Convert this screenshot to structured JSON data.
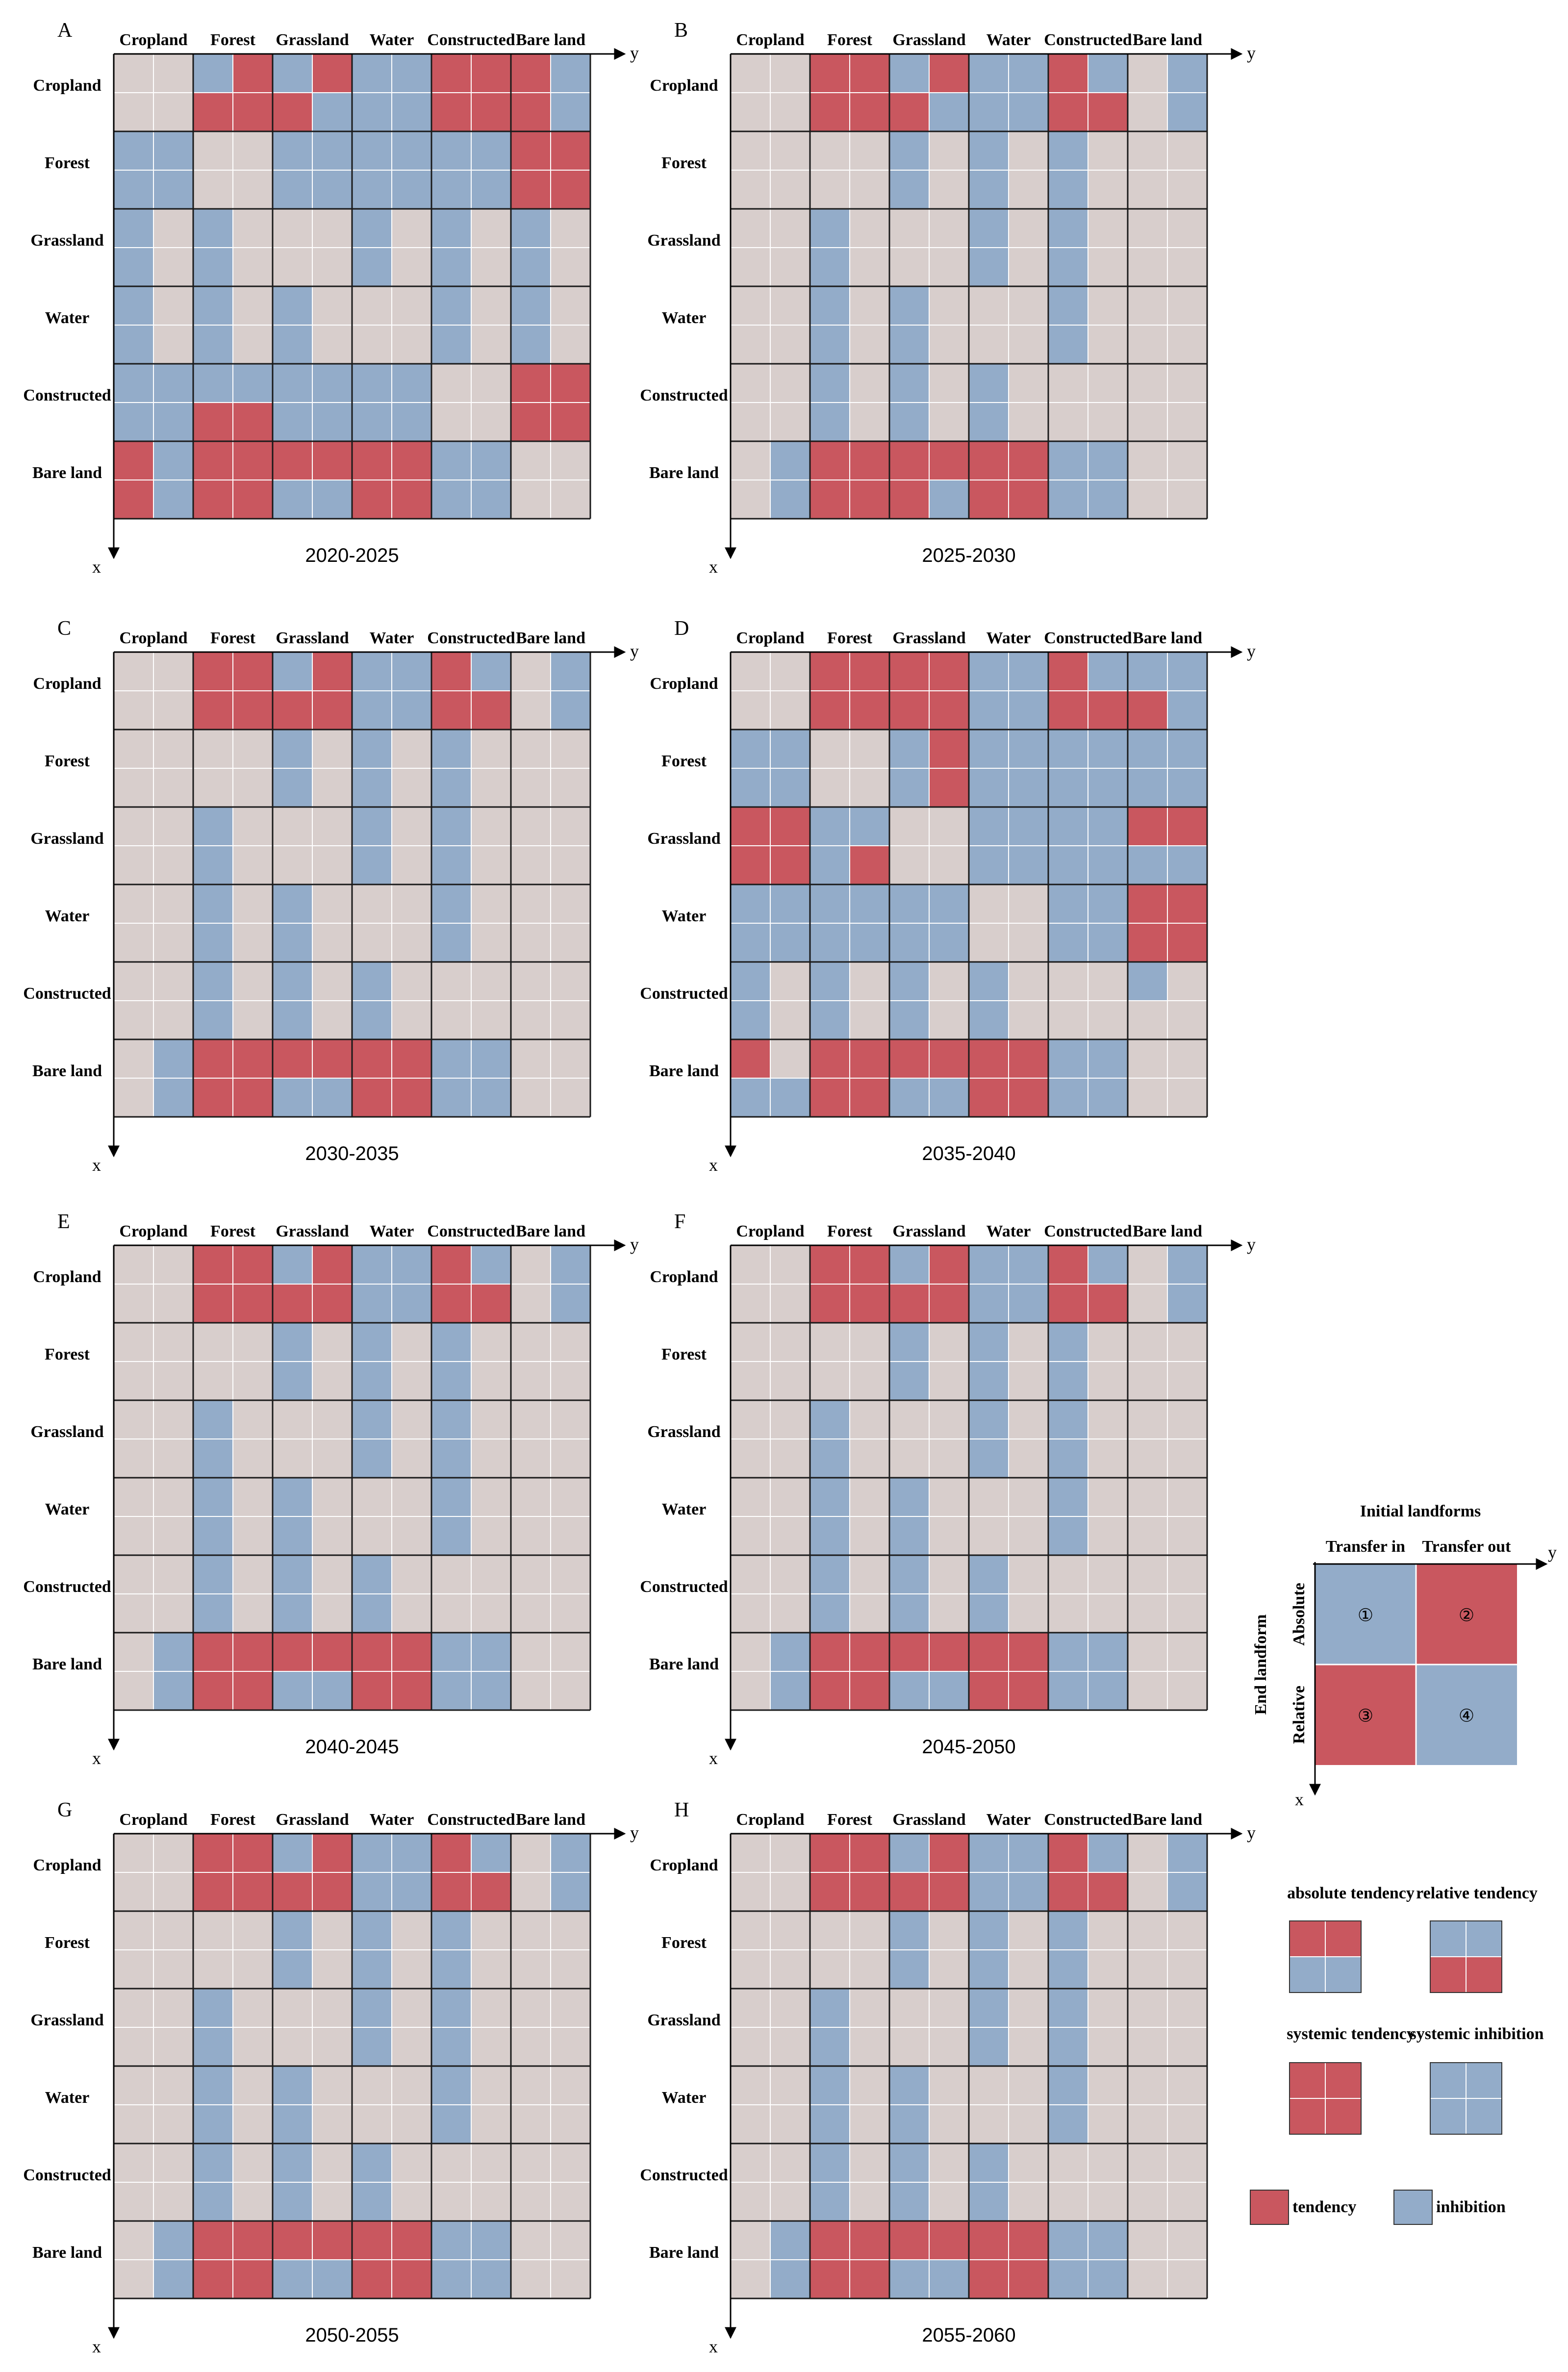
{
  "colors": {
    "tendency": "#c9575f",
    "inhibition": "#93acc9",
    "none": "#d8cecc",
    "grid_line": "#1a1a1a",
    "white_line": "#ffffff"
  },
  "categories": [
    "Cropland",
    "Forest",
    "Grassland",
    "Water",
    "Constructed",
    "Bare land"
  ],
  "axis": {
    "x": "x",
    "y": "y"
  },
  "cell_code_legend": "each cell = 4 quadrants [top-left, top-right, bottom-left, bottom-right]; R = tendency, B = inhibition, G = neutral",
  "panels": [
    {
      "label": "A",
      "period": "2020-2025",
      "cells": [
        [
          "GGGG",
          "BRRR",
          "BRRB",
          "BBBB",
          "RRRR",
          "RBRB"
        ],
        [
          "BBBB",
          "GGGG",
          "BBBB",
          "BBBB",
          "BBBB",
          "RRRR"
        ],
        [
          "BGBG",
          "BGBG",
          "GGGG",
          "BGBG",
          "BGBG",
          "BGBG"
        ],
        [
          "BGBG",
          "BGBG",
          "BGBG",
          "GGGG",
          "BGBG",
          "BGBG"
        ],
        [
          "BBBB",
          "BBRR",
          "BBBB",
          "BBBB",
          "GGGG",
          "RRRR"
        ],
        [
          "RBRB",
          "RRRR",
          "RRBB",
          "RRRR",
          "BBBB",
          "GGGG"
        ]
      ]
    },
    {
      "label": "B",
      "period": "2025-2030",
      "cells": [
        [
          "GGGG",
          "RRRR",
          "BRRB",
          "BBBB",
          "RBRR",
          "GBGB"
        ],
        [
          "GGGG",
          "GGGG",
          "BGBG",
          "BGBG",
          "BGBG",
          "GGGG"
        ],
        [
          "GGGG",
          "BGBG",
          "GGGG",
          "BGBG",
          "BGBG",
          "GGGG"
        ],
        [
          "GGGG",
          "BGBG",
          "BGBG",
          "GGGG",
          "BGBG",
          "GGGG"
        ],
        [
          "GGGG",
          "BGBG",
          "BGBG",
          "BGBG",
          "GGGG",
          "GGGG"
        ],
        [
          "GBGB",
          "RRRR",
          "RRRB",
          "RRRR",
          "BBBB",
          "GGGG"
        ]
      ]
    },
    {
      "label": "C",
      "period": "2030-2035",
      "cells": [
        [
          "GGGG",
          "RRRR",
          "BRRR",
          "BBBB",
          "RBRR",
          "GBGB"
        ],
        [
          "GGGG",
          "GGGG",
          "BGBG",
          "BGBG",
          "BGBG",
          "GGGG"
        ],
        [
          "GGGG",
          "BGBG",
          "GGGG",
          "BGBG",
          "BGBG",
          "GGGG"
        ],
        [
          "GGGG",
          "BGBG",
          "BGBG",
          "GGGG",
          "BGBG",
          "GGGG"
        ],
        [
          "GGGG",
          "BGBG",
          "BGBG",
          "BGBG",
          "GGGG",
          "GGGG"
        ],
        [
          "GBGB",
          "RRRR",
          "RRBB",
          "RRRR",
          "BBBB",
          "GGGG"
        ]
      ]
    },
    {
      "label": "D",
      "period": "2035-2040",
      "cells": [
        [
          "GGGG",
          "RRRR",
          "RRRR",
          "BBBB",
          "RBRR",
          "BBRB"
        ],
        [
          "BBBB",
          "GGGG",
          "BRBR",
          "BBBB",
          "BBBB",
          "BBBB"
        ],
        [
          "RRRR",
          "BBBR",
          "GGGG",
          "BBBB",
          "BBBB",
          "RRBB"
        ],
        [
          "BBBB",
          "BBBB",
          "BBBB",
          "GGGG",
          "BBBB",
          "RRRR"
        ],
        [
          "BGBG",
          "BGBG",
          "BGBG",
          "BGBG",
          "GGGG",
          "BGGG"
        ],
        [
          "RGBB",
          "RRRR",
          "RRBB",
          "RRRR",
          "BBBB",
          "GGGG"
        ]
      ]
    },
    {
      "label": "E",
      "period": "2040-2045",
      "cells": [
        [
          "GGGG",
          "RRRR",
          "BRRR",
          "BBBB",
          "RBRR",
          "GBGB"
        ],
        [
          "GGGG",
          "GGGG",
          "BGBG",
          "BGBG",
          "BGBG",
          "GGGG"
        ],
        [
          "GGGG",
          "BGBG",
          "GGGG",
          "BGBG",
          "BGBG",
          "GGGG"
        ],
        [
          "GGGG",
          "BGBG",
          "BGBG",
          "GGGG",
          "BGBG",
          "GGGG"
        ],
        [
          "GGGG",
          "BGBG",
          "BGBG",
          "BGBG",
          "GGGG",
          "GGGG"
        ],
        [
          "GBGB",
          "RRRR",
          "RRBB",
          "RRRR",
          "BBBB",
          "GGGG"
        ]
      ]
    },
    {
      "label": "F",
      "period": "2045-2050",
      "cells": [
        [
          "GGGG",
          "RRRR",
          "BRRR",
          "BBBB",
          "RBRR",
          "GBGB"
        ],
        [
          "GGGG",
          "GGGG",
          "BGBG",
          "BGBG",
          "BGBG",
          "GGGG"
        ],
        [
          "GGGG",
          "BGBG",
          "GGGG",
          "BGBG",
          "BGBG",
          "GGGG"
        ],
        [
          "GGGG",
          "BGBG",
          "BGBG",
          "GGGG",
          "BGBG",
          "GGGG"
        ],
        [
          "GGGG",
          "BGBG",
          "BGBG",
          "BGBG",
          "GGGG",
          "GGGG"
        ],
        [
          "GBGB",
          "RRRR",
          "RRBB",
          "RRRR",
          "BBBB",
          "GGGG"
        ]
      ]
    },
    {
      "label": "G",
      "period": "2050-2055",
      "cells": [
        [
          "GGGG",
          "RRRR",
          "BRRR",
          "BBBB",
          "RBRR",
          "GBGB"
        ],
        [
          "GGGG",
          "GGGG",
          "BGBG",
          "BGBG",
          "BGBG",
          "GGGG"
        ],
        [
          "GGGG",
          "BGBG",
          "GGGG",
          "BGBG",
          "BGBG",
          "GGGG"
        ],
        [
          "GGGG",
          "BGBG",
          "BGBG",
          "GGGG",
          "BGBG",
          "GGGG"
        ],
        [
          "GGGG",
          "BGBG",
          "BGBG",
          "BGBG",
          "GGGG",
          "GGGG"
        ],
        [
          "GBGB",
          "RRRR",
          "RRBB",
          "RRRR",
          "BBBB",
          "GGGG"
        ]
      ]
    },
    {
      "label": "H",
      "period": "2055-2060",
      "cells": [
        [
          "GGGG",
          "RRRR",
          "BRRR",
          "BBBB",
          "RBRR",
          "GBGB"
        ],
        [
          "GGGG",
          "GGGG",
          "BGBG",
          "BGBG",
          "BGBG",
          "GGGG"
        ],
        [
          "GGGG",
          "BGBG",
          "GGGG",
          "BGBG",
          "BGBG",
          "GGGG"
        ],
        [
          "GGGG",
          "BGBG",
          "BGBG",
          "GGGG",
          "BGBG",
          "GGGG"
        ],
        [
          "GGGG",
          "BGBG",
          "BGBG",
          "BGBG",
          "GGGG",
          "GGGG"
        ],
        [
          "GBGB",
          "RRRR",
          "RRBB",
          "RRRR",
          "BBBB",
          "GGGG"
        ]
      ]
    }
  ],
  "key": {
    "title": "Initial landforms",
    "col_labels": [
      "Transfer in",
      "Transfer out"
    ],
    "row_labels": [
      "Absolute",
      "Relative"
    ],
    "side_label": "End landform",
    "quadrant_numbers": [
      "①",
      "②",
      "③",
      "④"
    ],
    "quadrant_codes": "BRRB"
  },
  "legend": {
    "items": [
      {
        "label": "absolute tendency",
        "code": "RRBB"
      },
      {
        "label": "relative tendency",
        "code": "BBRR"
      },
      {
        "label": "systemic tendency",
        "code": "RRRR"
      },
      {
        "label": "systemic inhibition",
        "code": "BBBB"
      }
    ],
    "tendency_label": "tendency",
    "inhibition_label": "inhibition"
  }
}
